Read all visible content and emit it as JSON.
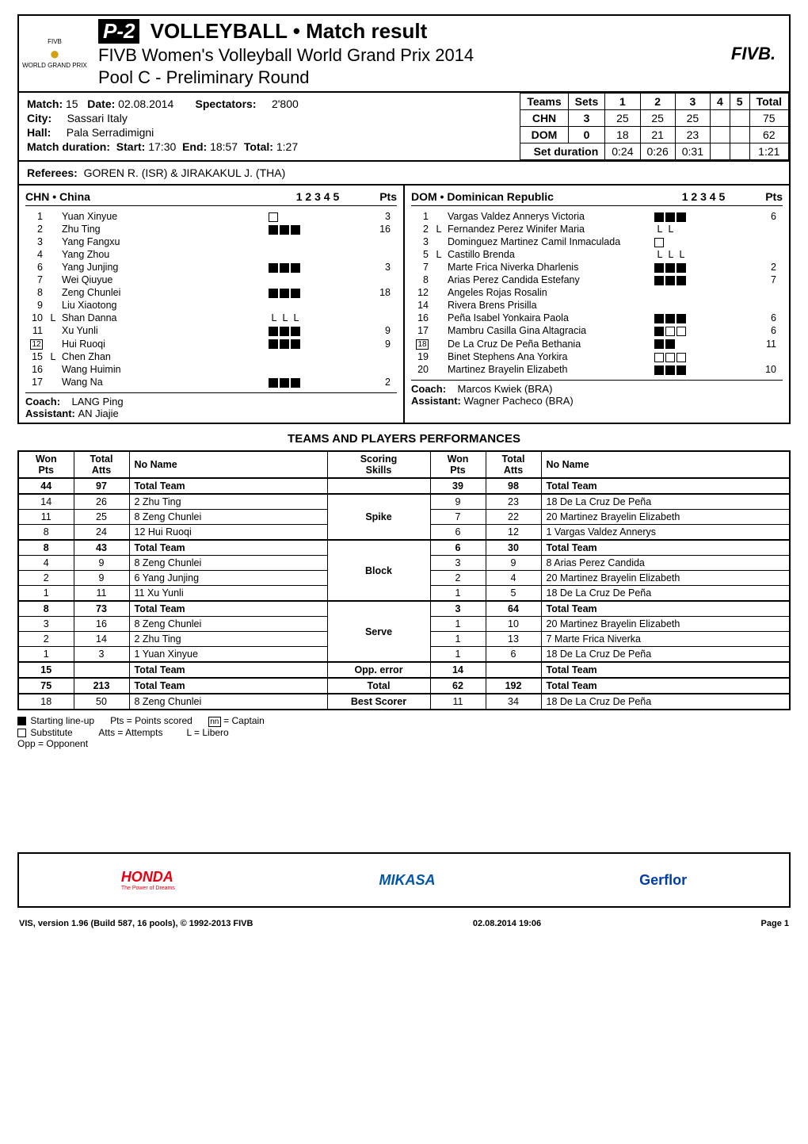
{
  "header": {
    "badge": "P-2",
    "title_main": "VOLLEYBALL • Match result",
    "title_sub1": "FIVB Women's Volleyball World Grand Prix 2014",
    "title_sub2": "Pool C - Preliminary Round",
    "left_logo_top": "FIVB",
    "left_logo_bottom": "WORLD GRAND PRIX",
    "right_logo": "FIVB."
  },
  "match_info": {
    "match_label": "Match:",
    "match_no": "15",
    "date_label": "Date:",
    "date": "02.08.2014",
    "spectators_label": "Spectators:",
    "spectators": "2'800",
    "city_label": "City:",
    "city": "Sassari Italy",
    "hall_label": "Hall:",
    "hall": "Pala Serradimigni",
    "duration_label": "Match duration:",
    "start_label": "Start:",
    "start": "17:30",
    "end_label": "End:",
    "end": "18:57",
    "total_label": "Total:",
    "total": "1:27"
  },
  "sets_table": {
    "headers": [
      "Teams",
      "Sets",
      "1",
      "2",
      "3",
      "4",
      "5",
      "Total"
    ],
    "rows": [
      {
        "team": "CHN",
        "sets": "3",
        "s1": "25",
        "s2": "25",
        "s3": "25",
        "s4": "",
        "s5": "",
        "total": "75"
      },
      {
        "team": "DOM",
        "sets": "0",
        "s1": "18",
        "s2": "21",
        "s3": "23",
        "s4": "",
        "s5": "",
        "total": "62"
      }
    ],
    "duration_label": "Set duration",
    "durations": {
      "s1": "0:24",
      "s2": "0:26",
      "s3": "0:31",
      "s4": "",
      "s5": "",
      "total": "1:21"
    }
  },
  "referees": {
    "label": "Referees:",
    "value": "GOREN R. (ISR) & JIRAKAKUL J. (THA)"
  },
  "teamA": {
    "code": "CHN",
    "name": "China",
    "sets_header": "1  2  3  4  5",
    "pts_header": "Pts",
    "roster": [
      {
        "num": "1",
        "cap": false,
        "lib": "",
        "name": "Yuan Xinyue",
        "marks": [
          "e"
        ],
        "pts": "3"
      },
      {
        "num": "2",
        "cap": false,
        "lib": "",
        "name": "Zhu Ting",
        "marks": [
          "f",
          "f",
          "f"
        ],
        "pts": "16"
      },
      {
        "num": "3",
        "cap": false,
        "lib": "",
        "name": "Yang Fangxu",
        "marks": [],
        "pts": ""
      },
      {
        "num": "4",
        "cap": false,
        "lib": "",
        "name": "Yang Zhou",
        "marks": [],
        "pts": ""
      },
      {
        "num": "6",
        "cap": false,
        "lib": "",
        "name": "Yang Junjing",
        "marks": [
          "f",
          "f",
          "f"
        ],
        "pts": "3"
      },
      {
        "num": "7",
        "cap": false,
        "lib": "",
        "name": "Wei Qiuyue",
        "marks": [],
        "pts": ""
      },
      {
        "num": "8",
        "cap": false,
        "lib": "",
        "name": "Zeng Chunlei",
        "marks": [
          "f",
          "f",
          "f"
        ],
        "pts": "18"
      },
      {
        "num": "9",
        "cap": false,
        "lib": "",
        "name": "Liu Xiaotong",
        "marks": [],
        "pts": ""
      },
      {
        "num": "10",
        "cap": false,
        "lib": "L",
        "name": "Shan Danna",
        "marks": [
          "L",
          "L",
          "L"
        ],
        "pts": ""
      },
      {
        "num": "11",
        "cap": false,
        "lib": "",
        "name": "Xu Yunli",
        "marks": [
          "f",
          "f",
          "f"
        ],
        "pts": "9"
      },
      {
        "num": "12",
        "cap": true,
        "lib": "",
        "name": "Hui Ruoqi",
        "marks": [
          "f",
          "f",
          "f"
        ],
        "pts": "9"
      },
      {
        "num": "15",
        "cap": false,
        "lib": "L",
        "name": "Chen Zhan",
        "marks": [],
        "pts": ""
      },
      {
        "num": "16",
        "cap": false,
        "lib": "",
        "name": "Wang Huimin",
        "marks": [],
        "pts": ""
      },
      {
        "num": "17",
        "cap": false,
        "lib": "",
        "name": "Wang Na",
        "marks": [
          "f",
          "f",
          "f"
        ],
        "pts": "2"
      }
    ],
    "coach_label": "Coach:",
    "coach": "LANG Ping",
    "assist_label": "Assistant:",
    "assist": "AN Jiajie"
  },
  "teamB": {
    "code": "DOM",
    "name": "Dominican Republic",
    "sets_header": "1  2  3  4  5",
    "pts_header": "Pts",
    "roster": [
      {
        "num": "1",
        "cap": false,
        "lib": "",
        "name": "Vargas Valdez Annerys Victoria",
        "marks": [
          "f",
          "f",
          "f"
        ],
        "pts": "6"
      },
      {
        "num": "2",
        "cap": false,
        "lib": "L",
        "name": "Fernandez Perez Winifer Maria",
        "marks": [
          "L",
          "L"
        ],
        "pts": ""
      },
      {
        "num": "3",
        "cap": false,
        "lib": "",
        "name": "Dominguez Martinez Camil Inmaculada",
        "marks": [
          "e"
        ],
        "pts": ""
      },
      {
        "num": "5",
        "cap": false,
        "lib": "L",
        "name": "Castillo Brenda",
        "marks": [
          "L",
          "L",
          "L"
        ],
        "pts": ""
      },
      {
        "num": "7",
        "cap": false,
        "lib": "",
        "name": "Marte Frica Niverka Dharlenis",
        "marks": [
          "f",
          "f",
          "f"
        ],
        "pts": "2"
      },
      {
        "num": "8",
        "cap": false,
        "lib": "",
        "name": "Arias Perez Candida Estefany",
        "marks": [
          "f",
          "f",
          "f"
        ],
        "pts": "7"
      },
      {
        "num": "12",
        "cap": false,
        "lib": "",
        "name": "Angeles Rojas Rosalin",
        "marks": [],
        "pts": ""
      },
      {
        "num": "14",
        "cap": false,
        "lib": "",
        "name": "Rivera Brens Prisilla",
        "marks": [],
        "pts": ""
      },
      {
        "num": "16",
        "cap": false,
        "lib": "",
        "name": "Peña Isabel Yonkaira Paola",
        "marks": [
          "f",
          "f",
          "f"
        ],
        "pts": "6"
      },
      {
        "num": "17",
        "cap": false,
        "lib": "",
        "name": "Mambru Casilla Gina Altagracia",
        "marks": [
          "f",
          "e",
          "e"
        ],
        "pts": "6"
      },
      {
        "num": "18",
        "cap": true,
        "lib": "",
        "name": "De La Cruz De Peña Bethania",
        "marks": [
          "f",
          "f"
        ],
        "pts": "11"
      },
      {
        "num": "19",
        "cap": false,
        "lib": "",
        "name": "Binet Stephens Ana Yorkira",
        "marks": [
          "e",
          "e",
          "e"
        ],
        "pts": ""
      },
      {
        "num": "20",
        "cap": false,
        "lib": "",
        "name": "Martinez Brayelin Elizabeth",
        "marks": [
          "f",
          "f",
          "f"
        ],
        "pts": "10"
      }
    ],
    "coach_label": "Coach:",
    "coach": "Marcos Kwiek (BRA)",
    "assist_label": "Assistant:",
    "assist": "Wagner Pacheco (BRA)"
  },
  "perf": {
    "title": "TEAMS AND PLAYERS PERFORMANCES",
    "headers": {
      "won": "Won\nPts",
      "total": "Total\nAtts",
      "no_name": "No Name",
      "scoring": "Scoring\nSkills"
    },
    "groups": [
      {
        "skill": "",
        "left": [
          {
            "won": "44",
            "tot": "97",
            "name": "Total Team"
          }
        ],
        "right": [
          {
            "won": "39",
            "tot": "98",
            "name": "Total Team"
          }
        ]
      },
      {
        "skill": "Spike",
        "left": [
          {
            "won": "14",
            "tot": "26",
            "name": "2  Zhu Ting"
          },
          {
            "won": "11",
            "tot": "25",
            "name": "8  Zeng Chunlei"
          },
          {
            "won": "8",
            "tot": "24",
            "name": "12  Hui Ruoqi"
          }
        ],
        "right": [
          {
            "won": "9",
            "tot": "23",
            "name": "18  De La Cruz De Peña"
          },
          {
            "won": "7",
            "tot": "22",
            "name": "20  Martinez Brayelin Elizabeth"
          },
          {
            "won": "6",
            "tot": "12",
            "name": "1  Vargas Valdez Annerys"
          }
        ]
      },
      {
        "skill": "Block",
        "left": [
          {
            "won": "8",
            "tot": "43",
            "name": "Total Team"
          },
          {
            "won": "4",
            "tot": "9",
            "name": "8  Zeng Chunlei"
          },
          {
            "won": "2",
            "tot": "9",
            "name": "6  Yang Junjing"
          },
          {
            "won": "1",
            "tot": "11",
            "name": "11  Xu Yunli"
          }
        ],
        "right": [
          {
            "won": "6",
            "tot": "30",
            "name": "Total Team"
          },
          {
            "won": "3",
            "tot": "9",
            "name": "8  Arias Perez Candida"
          },
          {
            "won": "2",
            "tot": "4",
            "name": "20  Martinez Brayelin Elizabeth"
          },
          {
            "won": "1",
            "tot": "5",
            "name": "18  De La Cruz De Peña"
          }
        ]
      },
      {
        "skill": "Serve",
        "left": [
          {
            "won": "8",
            "tot": "73",
            "name": "Total Team"
          },
          {
            "won": "3",
            "tot": "16",
            "name": "8  Zeng Chunlei"
          },
          {
            "won": "2",
            "tot": "14",
            "name": "2  Zhu Ting"
          },
          {
            "won": "1",
            "tot": "3",
            "name": "1  Yuan Xinyue"
          }
        ],
        "right": [
          {
            "won": "3",
            "tot": "64",
            "name": "Total Team"
          },
          {
            "won": "1",
            "tot": "10",
            "name": "20  Martinez Brayelin Elizabeth"
          },
          {
            "won": "1",
            "tot": "13",
            "name": "7  Marte Frica Niverka"
          },
          {
            "won": "1",
            "tot": "6",
            "name": "18  De La Cruz De Peña"
          }
        ]
      },
      {
        "skill": "Opp. error",
        "left": [
          {
            "won": "15",
            "tot": "",
            "name": "Total Team"
          }
        ],
        "right": [
          {
            "won": "14",
            "tot": "",
            "name": "Total Team"
          }
        ]
      },
      {
        "skill": "Total",
        "left": [
          {
            "won": "75",
            "tot": "213",
            "name": "Total Team"
          }
        ],
        "right": [
          {
            "won": "62",
            "tot": "192",
            "name": "Total Team"
          }
        ]
      },
      {
        "skill": "Best Scorer",
        "left": [
          {
            "won": "18",
            "tot": "50",
            "name": "8  Zeng Chunlei"
          }
        ],
        "right": [
          {
            "won": "11",
            "tot": "34",
            "name": "18  De La Cruz De Peña"
          }
        ]
      }
    ]
  },
  "legend": {
    "starting": "Starting line-up",
    "substitute": "Substitute",
    "opp": "Opp = Opponent",
    "pts": "Pts = Points scored",
    "atts": "Atts = Attempts",
    "captain": "= Captain",
    "libero": "L = Libero",
    "nn": "nn"
  },
  "sponsors": {
    "honda": "HONDA",
    "honda_sub": "The Power of Dreams",
    "mikasa": "MIKASA",
    "gerflor": "Gerflor"
  },
  "footer": {
    "left": "VIS, version 1.96 (Build 587, 16 pools), © 1992-2013 FIVB",
    "mid": "02.08.2014  19:06",
    "right": "Page 1"
  },
  "colors": {
    "black": "#000000",
    "white": "#ffffff",
    "honda_red": "#e60012",
    "mikasa_blue": "#0055a5",
    "gerflor_blue": "#003da5",
    "medal_gold": "#d4a017"
  }
}
